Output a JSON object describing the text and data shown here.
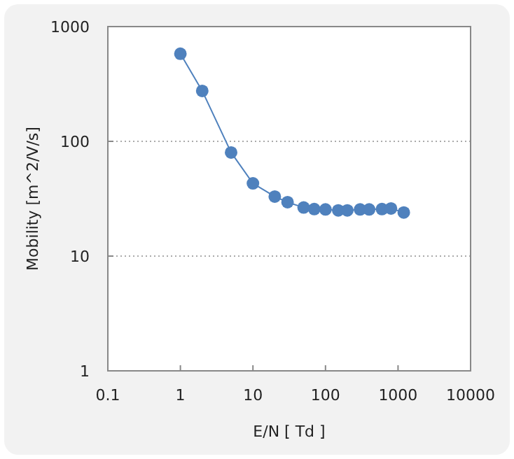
{
  "chart_data": {
    "type": "line",
    "xlabel": "E/N [ Td ]",
    "ylabel": "Mobility [m^2/V/s]",
    "log": "xy",
    "grid": "y",
    "marker": "circle",
    "line_style": "solid",
    "xlim": [
      0.1,
      10000
    ],
    "xticks": [
      0.1,
      1,
      10,
      100,
      1000,
      10000
    ],
    "ylim": [
      1,
      1000
    ],
    "yticks": [
      1,
      10,
      100,
      1000
    ],
    "series": [
      {
        "color": "#4f81bd",
        "x": [
          1,
          2,
          5,
          10,
          20,
          30,
          50,
          70,
          100,
          150,
          200,
          300,
          400,
          600,
          800,
          1200
        ],
        "values": [
          580,
          275,
          80,
          43,
          33,
          29.5,
          26.5,
          25.7,
          25.5,
          25,
          25,
          25.5,
          25.5,
          25.7,
          26,
          24
        ]
      }
    ]
  }
}
